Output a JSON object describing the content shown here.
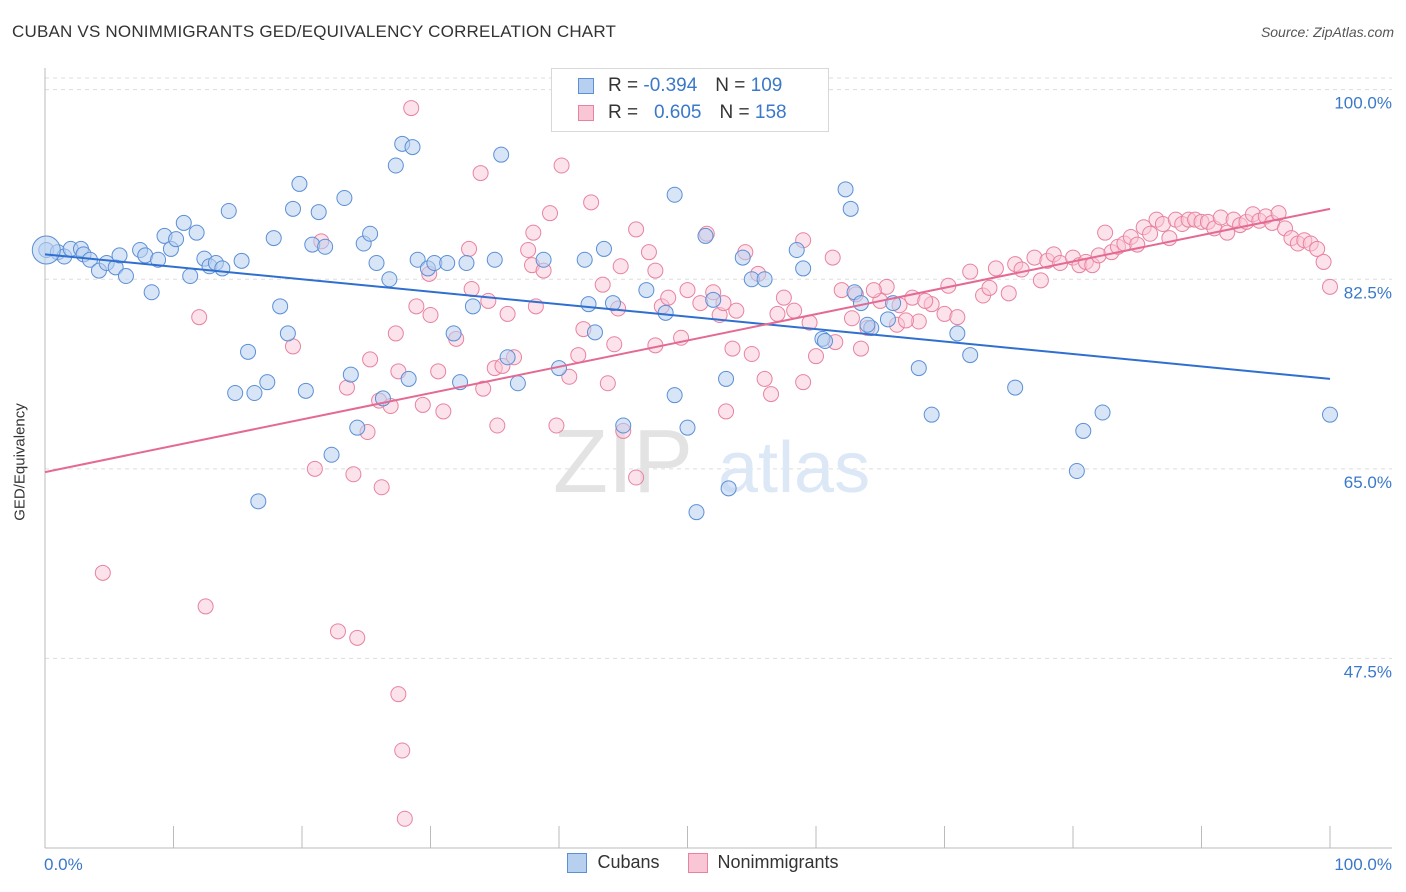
{
  "title": "CUBAN VS NONIMMIGRANTS GED/EQUIVALENCY CORRELATION CHART",
  "source": "Source: ZipAtlas.com",
  "watermark": {
    "zip": "ZIP",
    "atlas": "atlas"
  },
  "legend": {
    "rows": [
      {
        "r_label": "R =",
        "r_value": "-0.394",
        "n_label": "N =",
        "n_value": "109",
        "fill": "#b8d0f0",
        "stroke": "#5b8fd6"
      },
      {
        "r_label": "R =",
        "r_value": "0.605",
        "n_label": "N =",
        "n_value": "158",
        "fill": "#f9c6d5",
        "stroke": "#e8839f"
      }
    ]
  },
  "bottom_legend": [
    {
      "label": "Cubans",
      "fill": "#b8d0f0",
      "stroke": "#5b8fd6"
    },
    {
      "label": "Nonimmigrants",
      "fill": "#f9c6d5",
      "stroke": "#e8839f"
    }
  ],
  "colors": {
    "blue_line": "#2f6fd0",
    "pink_line": "#e46a93",
    "tick_label": "#3a78c9",
    "grid": "#dddddd"
  },
  "chart_data": {
    "type": "scatter",
    "title": "CUBAN VS NONIMMIGRANTS GED/EQUIVALENCY CORRELATION CHART",
    "xlabel": "",
    "ylabel": "GED/Equivalency",
    "xlim": [
      0,
      100
    ],
    "ylim": [
      30,
      102
    ],
    "x_tick_labels": [
      "0.0%",
      "100.0%"
    ],
    "y_ticks": [
      47.5,
      65.0,
      82.5,
      100.0
    ],
    "y_tick_labels": [
      "47.5%",
      "65.0%",
      "82.5%",
      "100.0%"
    ],
    "grid": true,
    "legend_position": "top-center",
    "series": [
      {
        "name": "Cubans",
        "trend": {
          "x": [
            0,
            100
          ],
          "y": [
            84.8,
            73.3
          ]
        },
        "points": [
          [
            0.1,
            85.2
          ],
          [
            1.0,
            85.0
          ],
          [
            1.5,
            84.6
          ],
          [
            2.0,
            85.3
          ],
          [
            2.8,
            85.3
          ],
          [
            3.0,
            84.8
          ],
          [
            3.5,
            84.3
          ],
          [
            4.2,
            83.3
          ],
          [
            4.8,
            84.0
          ],
          [
            5.5,
            83.6
          ],
          [
            5.8,
            84.7
          ],
          [
            6.3,
            82.8
          ],
          [
            7.4,
            85.2
          ],
          [
            7.8,
            84.7
          ],
          [
            8.3,
            81.3
          ],
          [
            8.8,
            84.3
          ],
          [
            9.3,
            86.5
          ],
          [
            9.8,
            85.3
          ],
          [
            10.2,
            86.2
          ],
          [
            10.8,
            87.7
          ],
          [
            11.3,
            82.8
          ],
          [
            11.8,
            86.8
          ],
          [
            12.4,
            84.4
          ],
          [
            12.8,
            83.7
          ],
          [
            13.3,
            84.0
          ],
          [
            13.8,
            83.5
          ],
          [
            14.3,
            88.8
          ],
          [
            14.8,
            72.0
          ],
          [
            15.3,
            84.2
          ],
          [
            15.8,
            75.8
          ],
          [
            16.3,
            72.0
          ],
          [
            16.6,
            62.0
          ],
          [
            17.3,
            73.0
          ],
          [
            17.8,
            86.3
          ],
          [
            18.3,
            80.0
          ],
          [
            18.9,
            77.5
          ],
          [
            19.3,
            89.0
          ],
          [
            19.8,
            91.3
          ],
          [
            20.3,
            72.2
          ],
          [
            20.8,
            85.7
          ],
          [
            21.3,
            88.7
          ],
          [
            21.8,
            85.5
          ],
          [
            22.3,
            66.3
          ],
          [
            23.3,
            90.0
          ],
          [
            23.8,
            73.7
          ],
          [
            24.3,
            68.8
          ],
          [
            24.8,
            85.8
          ],
          [
            25.3,
            86.7
          ],
          [
            25.8,
            84.0
          ],
          [
            26.3,
            71.5
          ],
          [
            26.8,
            82.5
          ],
          [
            27.3,
            93.0
          ],
          [
            27.8,
            95.0
          ],
          [
            28.3,
            73.3
          ],
          [
            28.6,
            94.7
          ],
          [
            29.0,
            84.3
          ],
          [
            29.8,
            83.5
          ],
          [
            30.3,
            84.0
          ],
          [
            31.3,
            84.0
          ],
          [
            31.8,
            77.5
          ],
          [
            32.3,
            73.0
          ],
          [
            32.8,
            84.0
          ],
          [
            33.3,
            80.0
          ],
          [
            35.0,
            84.3
          ],
          [
            35.5,
            94.0
          ],
          [
            36.0,
            75.3
          ],
          [
            38.8,
            84.3
          ],
          [
            40.0,
            74.3
          ],
          [
            42.0,
            84.3
          ],
          [
            42.3,
            80.2
          ],
          [
            42.8,
            77.6
          ],
          [
            43.5,
            85.3
          ],
          [
            44.2,
            80.3
          ],
          [
            45.0,
            69.0
          ],
          [
            46.8,
            81.5
          ],
          [
            49.0,
            90.3
          ],
          [
            49.0,
            71.8
          ],
          [
            50.0,
            68.8
          ],
          [
            50.7,
            61.0
          ],
          [
            51.4,
            86.5
          ],
          [
            53.0,
            73.3
          ],
          [
            53.2,
            63.2
          ],
          [
            54.3,
            84.5
          ],
          [
            55.0,
            82.5
          ],
          [
            56.0,
            82.5
          ],
          [
            58.5,
            85.2
          ],
          [
            59.0,
            83.5
          ],
          [
            60.5,
            77.0
          ],
          [
            60.7,
            76.8
          ],
          [
            62.3,
            90.8
          ],
          [
            62.7,
            89.0
          ],
          [
            63.0,
            81.3
          ],
          [
            63.5,
            80.3
          ],
          [
            64.3,
            78.0
          ],
          [
            65.6,
            78.8
          ],
          [
            66.0,
            80.3
          ],
          [
            68.0,
            74.3
          ],
          [
            69.0,
            70.0
          ],
          [
            71.0,
            77.5
          ],
          [
            72.0,
            75.5
          ],
          [
            75.5,
            72.5
          ],
          [
            80.3,
            64.8
          ],
          [
            80.8,
            68.5
          ],
          [
            82.3,
            70.2
          ],
          [
            100.0,
            70.0
          ],
          [
            52.0,
            80.6
          ],
          [
            64.0,
            78.3
          ],
          [
            48.3,
            79.4
          ],
          [
            36.8,
            72.9
          ]
        ]
      },
      {
        "name": "Nonimmigrants",
        "trend": {
          "x": [
            0,
            100
          ],
          "y": [
            64.7,
            89.0
          ]
        },
        "points": [
          [
            4.5,
            55.4
          ],
          [
            12.0,
            79.0
          ],
          [
            12.5,
            52.3
          ],
          [
            19.3,
            76.3
          ],
          [
            21.0,
            65.0
          ],
          [
            21.5,
            86.0
          ],
          [
            22.8,
            50.0
          ],
          [
            24.0,
            64.5
          ],
          [
            24.3,
            49.4
          ],
          [
            25.1,
            68.4
          ],
          [
            25.3,
            75.1
          ],
          [
            26.0,
            71.3
          ],
          [
            26.2,
            63.3
          ],
          [
            26.9,
            70.8
          ],
          [
            27.3,
            77.5
          ],
          [
            27.5,
            44.2
          ],
          [
            27.8,
            39.0
          ],
          [
            28.0,
            32.7
          ],
          [
            28.5,
            98.3
          ],
          [
            28.9,
            80.0
          ],
          [
            29.4,
            70.9
          ],
          [
            29.9,
            83.0
          ],
          [
            30.6,
            74.0
          ],
          [
            31.0,
            70.3
          ],
          [
            32.0,
            77.0
          ],
          [
            33.2,
            81.6
          ],
          [
            33.9,
            92.3
          ],
          [
            34.1,
            72.4
          ],
          [
            34.5,
            80.5
          ],
          [
            35.0,
            74.3
          ],
          [
            35.6,
            74.5
          ],
          [
            36.0,
            79.3
          ],
          [
            37.6,
            85.2
          ],
          [
            37.9,
            83.8
          ],
          [
            38.2,
            80.0
          ],
          [
            38.8,
            83.3
          ],
          [
            39.3,
            88.6
          ],
          [
            39.8,
            69.0
          ],
          [
            40.2,
            93.0
          ],
          [
            40.8,
            73.5
          ],
          [
            41.5,
            75.5
          ],
          [
            41.9,
            77.9
          ],
          [
            43.4,
            82.0
          ],
          [
            43.8,
            72.9
          ],
          [
            44.3,
            76.5
          ],
          [
            44.8,
            83.7
          ],
          [
            45.0,
            68.5
          ],
          [
            46.0,
            87.1
          ],
          [
            47.5,
            83.3
          ],
          [
            48.0,
            80.0
          ],
          [
            48.5,
            80.8
          ],
          [
            49.5,
            77.1
          ],
          [
            50.0,
            81.5
          ],
          [
            51.0,
            80.3
          ],
          [
            51.5,
            86.7
          ],
          [
            52.0,
            81.3
          ],
          [
            52.5,
            79.2
          ],
          [
            53.0,
            70.3
          ],
          [
            53.5,
            76.1
          ],
          [
            54.5,
            85.0
          ],
          [
            55.0,
            75.6
          ],
          [
            56.0,
            73.3
          ],
          [
            56.5,
            71.9
          ],
          [
            57.5,
            80.8
          ],
          [
            58.3,
            79.6
          ],
          [
            59.0,
            73.0
          ],
          [
            59.5,
            78.5
          ],
          [
            60.0,
            75.4
          ],
          [
            61.3,
            84.5
          ],
          [
            61.5,
            76.7
          ],
          [
            62.0,
            81.5
          ],
          [
            62.8,
            78.9
          ],
          [
            63.1,
            81.1
          ],
          [
            63.5,
            76.1
          ],
          [
            64.0,
            78.0
          ],
          [
            65.0,
            80.5
          ],
          [
            65.5,
            81.8
          ],
          [
            66.5,
            80.1
          ],
          [
            67.5,
            80.8
          ],
          [
            68.0,
            78.6
          ],
          [
            69.0,
            80.2
          ],
          [
            70.0,
            79.3
          ],
          [
            71.0,
            79.0
          ],
          [
            72.0,
            83.2
          ],
          [
            73.0,
            81.0
          ],
          [
            74.0,
            83.5
          ],
          [
            75.0,
            81.2
          ],
          [
            75.5,
            83.9
          ],
          [
            76.0,
            83.4
          ],
          [
            77.0,
            84.5
          ],
          [
            77.5,
            82.4
          ],
          [
            78.0,
            84.2
          ],
          [
            78.5,
            84.8
          ],
          [
            79.0,
            84.0
          ],
          [
            80.0,
            84.5
          ],
          [
            80.5,
            83.8
          ],
          [
            81.0,
            84.1
          ],
          [
            81.5,
            83.8
          ],
          [
            82.0,
            84.7
          ],
          [
            82.5,
            86.8
          ],
          [
            83.0,
            85.0
          ],
          [
            83.5,
            85.5
          ],
          [
            84.0,
            85.8
          ],
          [
            84.5,
            86.4
          ],
          [
            85.0,
            85.7
          ],
          [
            85.5,
            87.3
          ],
          [
            86.0,
            86.7
          ],
          [
            86.5,
            88.0
          ],
          [
            87.0,
            87.6
          ],
          [
            87.5,
            86.3
          ],
          [
            88.0,
            88.0
          ],
          [
            88.5,
            87.6
          ],
          [
            89.0,
            88.0
          ],
          [
            89.5,
            88.0
          ],
          [
            90.0,
            87.8
          ],
          [
            90.5,
            87.8
          ],
          [
            91.0,
            87.2
          ],
          [
            91.5,
            88.2
          ],
          [
            92.0,
            86.8
          ],
          [
            92.5,
            88.0
          ],
          [
            93.0,
            87.5
          ],
          [
            93.5,
            87.8
          ],
          [
            94.0,
            88.5
          ],
          [
            94.5,
            87.9
          ],
          [
            95.0,
            88.3
          ],
          [
            95.5,
            87.7
          ],
          [
            96.0,
            88.6
          ],
          [
            96.5,
            87.2
          ],
          [
            97.0,
            86.3
          ],
          [
            97.5,
            85.8
          ],
          [
            98.0,
            86.1
          ],
          [
            98.5,
            85.8
          ],
          [
            99.0,
            85.3
          ],
          [
            99.5,
            84.1
          ],
          [
            100.0,
            81.8
          ],
          [
            64.5,
            81.5
          ],
          [
            59.0,
            86.1
          ],
          [
            47.0,
            85.0
          ],
          [
            42.5,
            89.6
          ],
          [
            38.0,
            86.8
          ],
          [
            35.2,
            69.0
          ],
          [
            30.0,
            79.2
          ],
          [
            23.5,
            72.5
          ],
          [
            46.0,
            64.2
          ],
          [
            66.3,
            78.3
          ],
          [
            70.3,
            81.9
          ],
          [
            73.5,
            81.7
          ],
          [
            57.0,
            79.3
          ],
          [
            55.5,
            83.0
          ],
          [
            53.8,
            79.6
          ],
          [
            52.8,
            80.3
          ],
          [
            33.0,
            85.3
          ],
          [
            27.5,
            74.0
          ],
          [
            44.6,
            79.8
          ],
          [
            47.5,
            76.4
          ],
          [
            67.0,
            78.7
          ],
          [
            36.5,
            75.3
          ],
          [
            68.5,
            80.5
          ]
        ]
      }
    ]
  }
}
